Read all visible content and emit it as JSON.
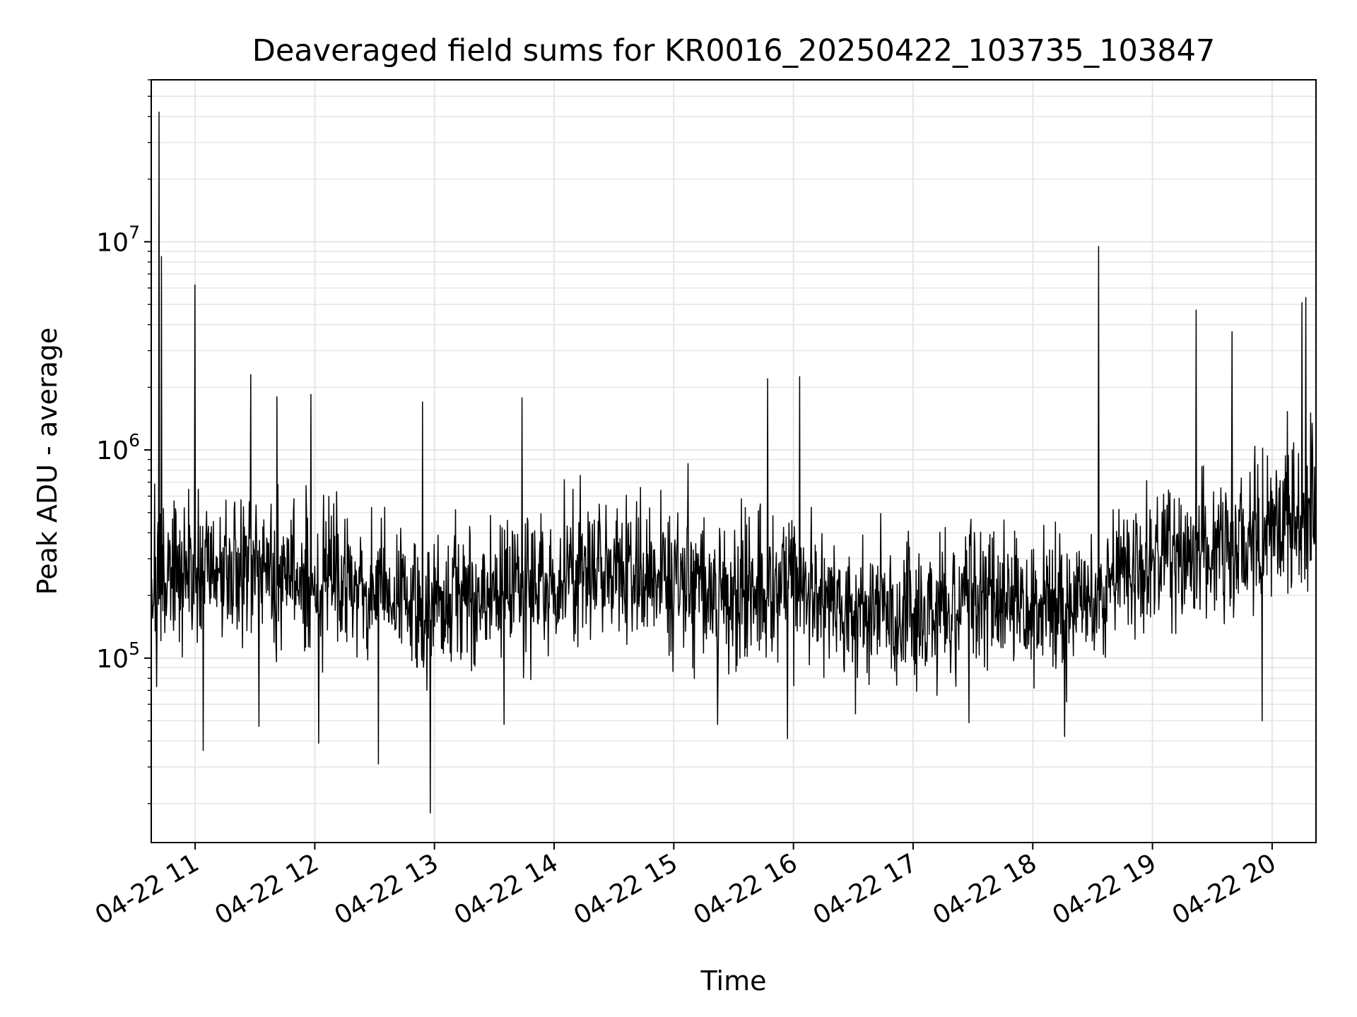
{
  "chart_data": {
    "type": "line",
    "title": "Deaveraged field sums for KR0016_20250422_103735_103847",
    "xlabel": "Time",
    "ylabel": "Peak ADU - average",
    "x_axis": {
      "type": "datetime",
      "range": [
        "2025-04-22 10:38",
        "2025-04-22 20:22"
      ],
      "ticks": [
        {
          "value": "2025-04-22 11:00",
          "label": "04-22 11"
        },
        {
          "value": "2025-04-22 12:00",
          "label": "04-22 12"
        },
        {
          "value": "2025-04-22 13:00",
          "label": "04-22 13"
        },
        {
          "value": "2025-04-22 14:00",
          "label": "04-22 14"
        },
        {
          "value": "2025-04-22 15:00",
          "label": "04-22 15"
        },
        {
          "value": "2025-04-22 16:00",
          "label": "04-22 16"
        },
        {
          "value": "2025-04-22 17:00",
          "label": "04-22 17"
        },
        {
          "value": "2025-04-22 18:00",
          "label": "04-22 18"
        },
        {
          "value": "2025-04-22 19:00",
          "label": "04-22 19"
        },
        {
          "value": "2025-04-22 20:00",
          "label": "04-22 20"
        }
      ],
      "tick_rotation_deg": 30
    },
    "y_axis": {
      "scale": "log",
      "range": [
        13000,
        60000000
      ],
      "ticks": [
        {
          "value": 100000,
          "base": "10",
          "exponent": "5"
        },
        {
          "value": 1000000,
          "base": "10",
          "exponent": "6"
        },
        {
          "value": 10000000,
          "base": "10",
          "exponent": "7"
        }
      ]
    },
    "grid": true,
    "grid_minor": true,
    "line_color": "#000000",
    "grid_color": "#e6e6e6",
    "series": [
      {
        "baseline": [
          [
            "2025-04-22 10:38",
            220000
          ],
          [
            "2025-04-22 11:00",
            250000
          ],
          [
            "2025-04-22 11:30",
            280000
          ],
          [
            "2025-04-22 12:00",
            230000
          ],
          [
            "2025-04-22 12:30",
            210000
          ],
          [
            "2025-04-22 13:00",
            180000
          ],
          [
            "2025-04-22 13:30",
            220000
          ],
          [
            "2025-04-22 14:00",
            230000
          ],
          [
            "2025-04-22 14:30",
            280000
          ],
          [
            "2025-04-22 15:00",
            250000
          ],
          [
            "2025-04-22 15:30",
            190000
          ],
          [
            "2025-04-22 16:00",
            230000
          ],
          [
            "2025-04-22 16:30",
            170000
          ],
          [
            "2025-04-22 17:00",
            160000
          ],
          [
            "2025-04-22 17:30",
            200000
          ],
          [
            "2025-04-22 18:00",
            180000
          ],
          [
            "2025-04-22 18:30",
            200000
          ],
          [
            "2025-04-22 19:00",
            310000
          ],
          [
            "2025-04-22 19:30",
            330000
          ],
          [
            "2025-04-22 20:00",
            380000
          ],
          [
            "2025-04-22 20:22",
            520000
          ]
        ],
        "spikes": [
          [
            "2025-04-22 10:42",
            42000000
          ],
          [
            "2025-04-22 10:43",
            8500000
          ],
          [
            "2025-04-22 11:00",
            6200000
          ],
          [
            "2025-04-22 11:28",
            2300000
          ],
          [
            "2025-04-22 11:41",
            1800000
          ],
          [
            "2025-04-22 11:58",
            1850000
          ],
          [
            "2025-04-22 12:54",
            1700000
          ],
          [
            "2025-04-22 13:44",
            1780000
          ],
          [
            "2025-04-22 15:47",
            2200000
          ],
          [
            "2025-04-22 16:03",
            2250000
          ],
          [
            "2025-04-22 18:33",
            9500000
          ],
          [
            "2025-04-22 19:22",
            4700000
          ],
          [
            "2025-04-22 19:40",
            3700000
          ],
          [
            "2025-04-22 20:15",
            5100000
          ],
          [
            "2025-04-22 20:17",
            5400000
          ]
        ],
        "dips": [
          [
            "2025-04-22 11:04",
            36000
          ],
          [
            "2025-04-22 11:32",
            47000
          ],
          [
            "2025-04-22 12:02",
            39000
          ],
          [
            "2025-04-22 12:32",
            31000
          ],
          [
            "2025-04-22 12:58",
            18000
          ],
          [
            "2025-04-22 13:35",
            48000
          ],
          [
            "2025-04-22 15:22",
            48000
          ],
          [
            "2025-04-22 15:57",
            41000
          ],
          [
            "2025-04-22 16:31",
            54000
          ],
          [
            "2025-04-22 17:28",
            49000
          ],
          [
            "2025-04-22 18:16",
            42000
          ],
          [
            "2025-04-22 19:55",
            50000
          ]
        ]
      }
    ]
  }
}
